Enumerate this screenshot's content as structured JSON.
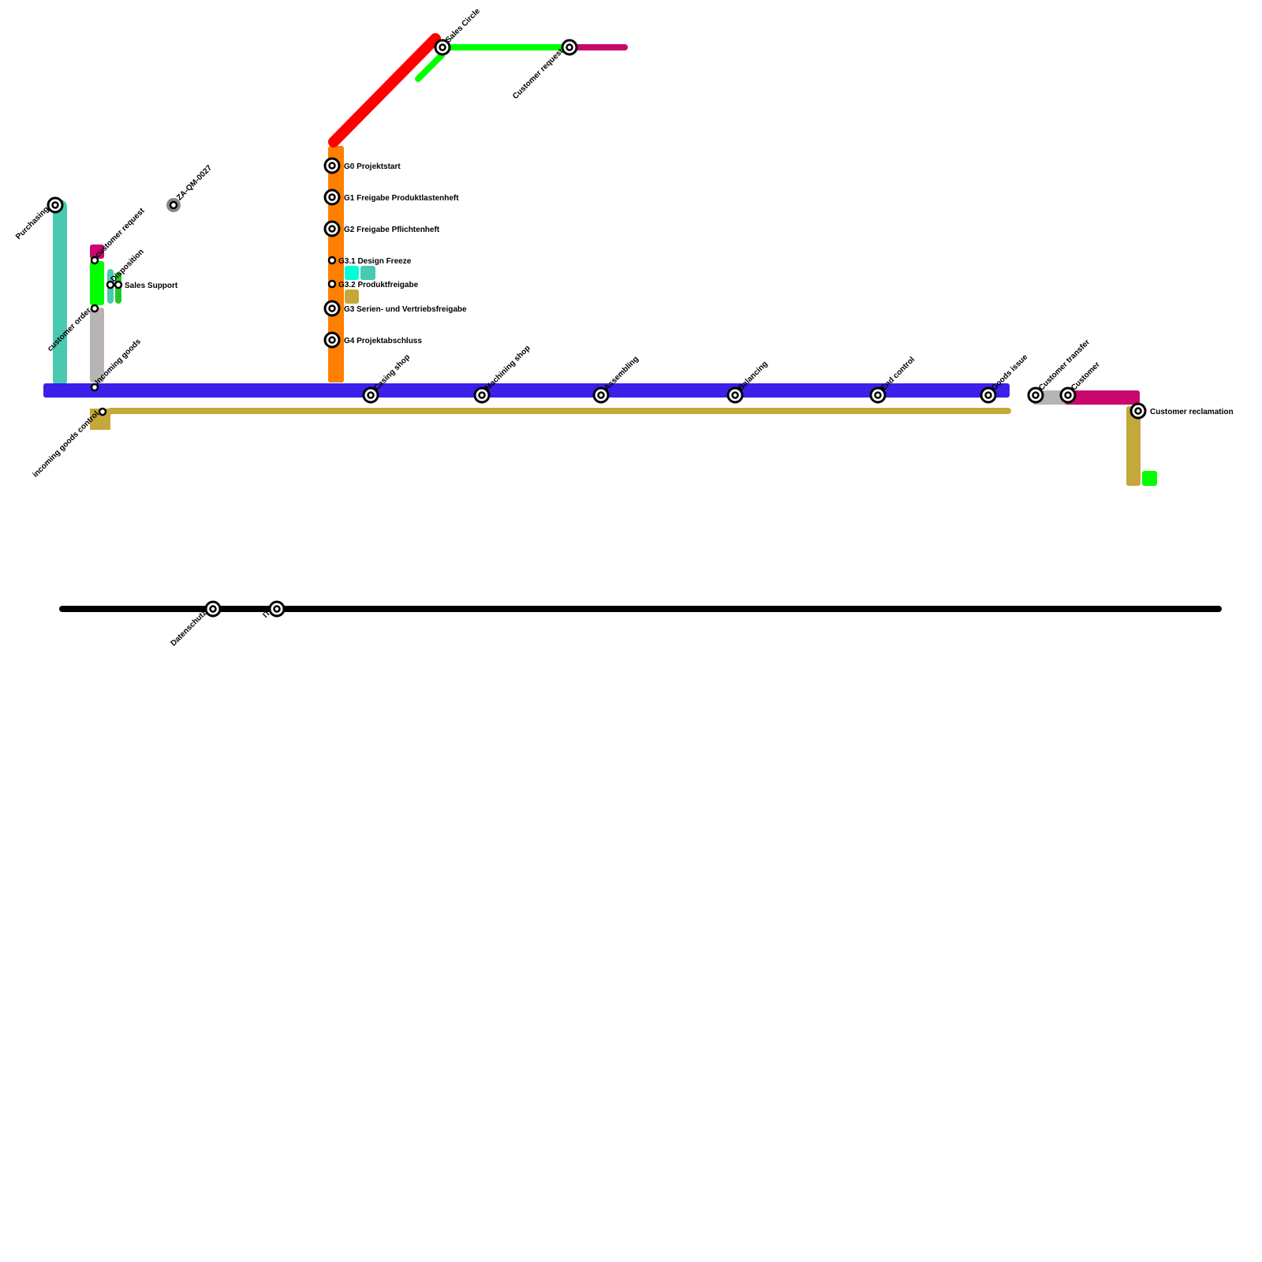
{
  "colors": {
    "production": "#3c1fe8",
    "logistics": "#c4a83a",
    "purchasing": "#48c9b0",
    "sales": "#c8086c",
    "order": "#00ff00",
    "incoming": "#b8b4b4",
    "project": "#ff7f00",
    "management": "#ff0000",
    "support": "#000000"
  },
  "stations": {
    "purchasing": "Purchasing",
    "customer_request_left": "customer request",
    "customer_order": "customer order",
    "incoming_goods": "Incoming goods",
    "incoming_goods_control": "incoming goods control",
    "disposition": "Disposition",
    "sales_support": "Sales Support",
    "za_qm": "ZA-QM-0027",
    "g0": "G0 Projektstart",
    "g1": "G1 Freigabe Produktlastenheft",
    "g2": "G2 Freigabe Pflichtenheft",
    "g31": "G3.1 Design Freeze",
    "g32": "G3.2 Produktfreigabe",
    "g3": "G3 Serien- und Vertriebsfreigabe",
    "g4": "G4 Projektabschluss",
    "casing_shop": "Casing shop",
    "machining_shop": "Machining shop",
    "assembling": "Assembling",
    "balancing": "Balancing",
    "end_control": "End control",
    "goods_issue": "Goods issue",
    "customer_transfer": "Customer transfer",
    "customer": "Customer",
    "customer_reclamation": "Customer reclamation",
    "sales_circle": "Sales Circle",
    "customer_request_top": "Customer request",
    "datenschutz": "Datenschutz",
    "it": "IT"
  }
}
